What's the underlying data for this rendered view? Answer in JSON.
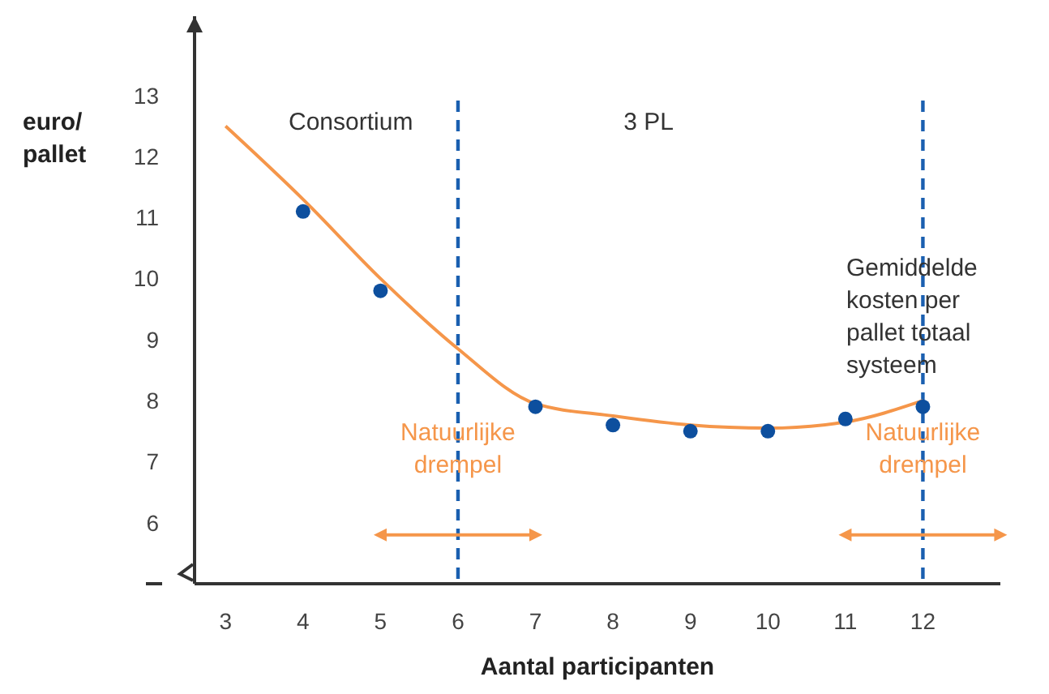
{
  "chart_data": {
    "type": "line",
    "xlabel": "Aantal participanten",
    "ylabel": "euro/ pallet",
    "xlim": [
      2.6,
      13
    ],
    "xticks": [
      3,
      4,
      5,
      6,
      7,
      8,
      9,
      10,
      11,
      12
    ],
    "ylim": [
      5,
      14.3
    ],
    "yticks": [
      6,
      7,
      8,
      9,
      10,
      11,
      12,
      13
    ],
    "grid": false,
    "series": [
      {
        "color": "#f5964a",
        "marker": "none",
        "x": [
          3,
          4,
          5,
          6,
          7,
          8,
          9,
          10,
          11,
          12
        ],
        "values": [
          12.5,
          11.3,
          10.0,
          8.85,
          7.95,
          7.75,
          7.6,
          7.55,
          7.65,
          8.0
        ]
      },
      {
        "type": "scatter",
        "color": "#0d4f9e",
        "marker": "circle",
        "x": [
          4,
          5,
          7,
          8,
          9,
          10,
          11,
          12
        ],
        "values": [
          11.1,
          9.8,
          7.9,
          7.6,
          7.5,
          7.5,
          7.7,
          7.9
        ]
      }
    ],
    "ref_lines": [
      {
        "axis": "x",
        "value": 6,
        "label": "Natuurlijke drempel",
        "color": "#1a5fb0",
        "line_style": "dashed"
      },
      {
        "axis": "x",
        "value": 12,
        "label": "Natuurlijke drempel",
        "color": "#1a5fb0",
        "line_style": "dashed"
      }
    ],
    "annotations": [
      "Consortium",
      "3 PL",
      "Gemiddelde kosten per pallet totaal systeem"
    ]
  }
}
